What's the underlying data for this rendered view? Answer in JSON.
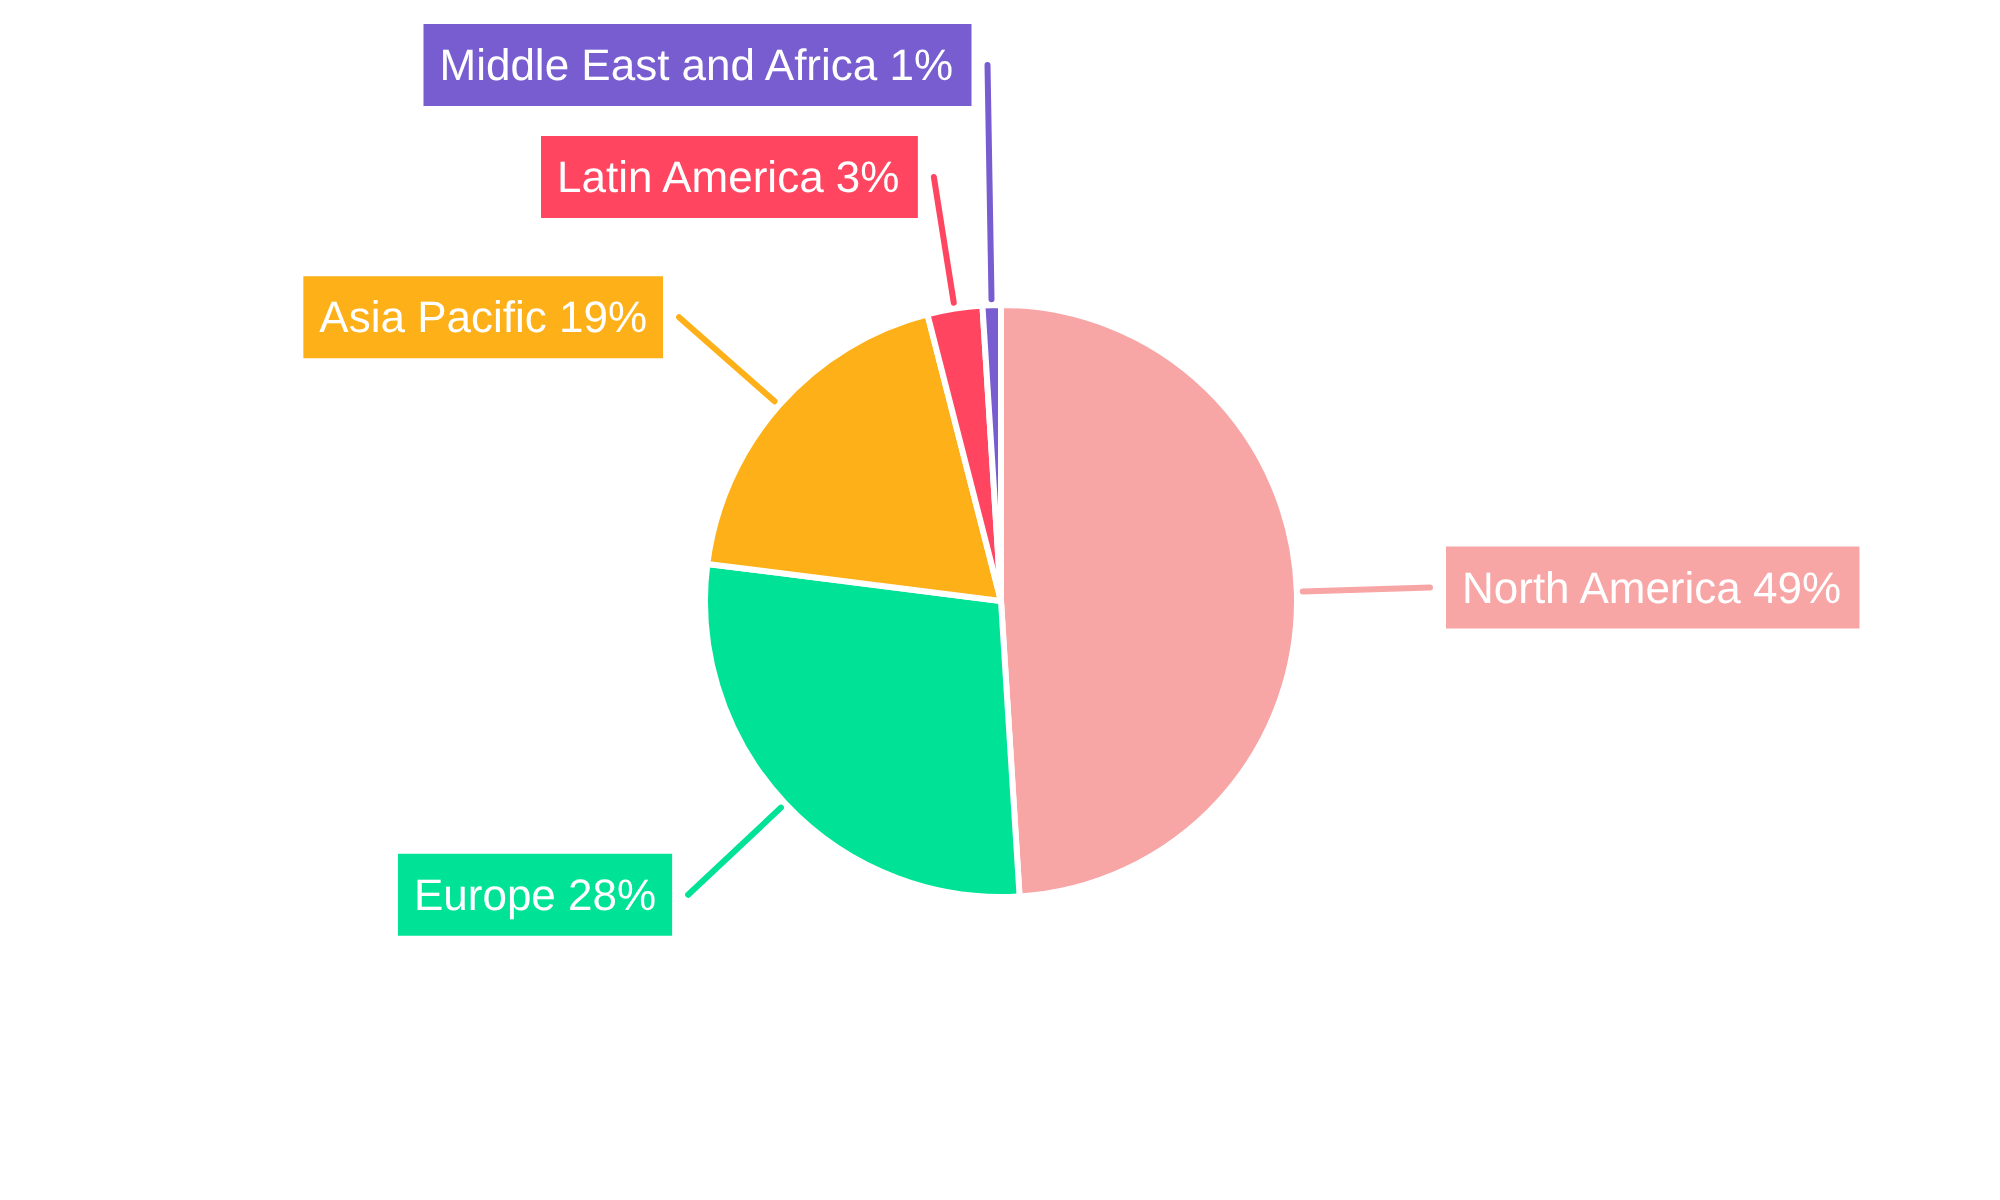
{
  "chart_data": {
    "type": "pie",
    "categories": [
      "North America",
      "Europe",
      "Asia Pacific",
      "Latin America",
      "Middle East and Africa"
    ],
    "values": [
      49,
      28,
      19,
      3,
      1
    ],
    "colors": [
      "#f8a5a6",
      "#00e396",
      "#feb019",
      "#ff4560",
      "#775dd0"
    ],
    "value_labels": [
      "49%",
      "28%",
      "19%",
      "3%",
      "1%"
    ]
  }
}
